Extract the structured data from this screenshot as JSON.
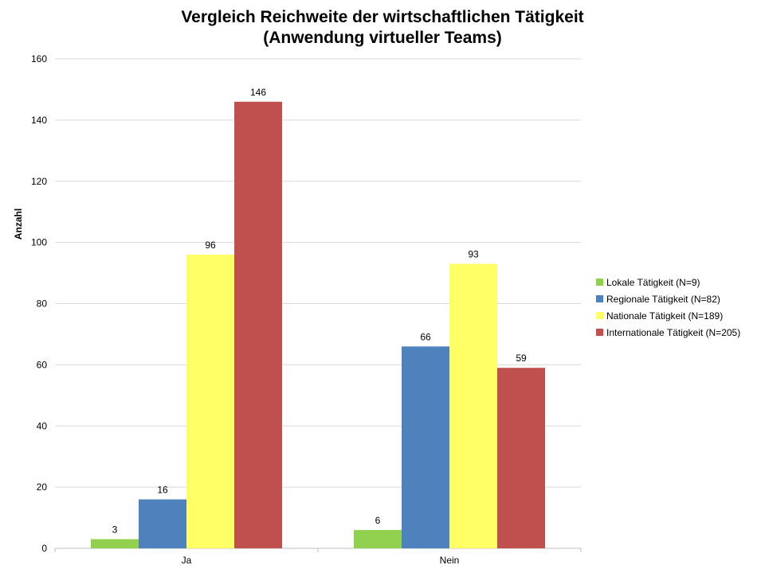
{
  "chart_data": {
    "type": "bar",
    "title_line1": "Vergleich Reichweite der wirtschaftlichen  Tätigkeit",
    "title_line2": "(Anwendung virtueller Teams)",
    "xlabel": "",
    "ylabel": "Anzahl",
    "ylim": [
      0,
      160
    ],
    "yticks": [
      "0",
      "20",
      "40",
      "60",
      "80",
      "100",
      "120",
      "140",
      "160"
    ],
    "categories": [
      "Ja",
      "Nein"
    ],
    "series": [
      {
        "name": "Lokale Tätigkeit (N=9)",
        "color": "#92D050",
        "values": [
          3,
          6
        ]
      },
      {
        "name": "Regionale Tätigkeit (N=82)",
        "color": "#4F81BD",
        "values": [
          16,
          66
        ]
      },
      {
        "name": "Nationale Tätigkeit (N=189)",
        "color": "#FFFF66",
        "values": [
          96,
          93
        ]
      },
      {
        "name": "Internationale Tätigkeit (N=205)",
        "color": "#C0504D",
        "values": [
          146,
          59
        ]
      }
    ],
    "grid": true,
    "legend_position": "right"
  }
}
